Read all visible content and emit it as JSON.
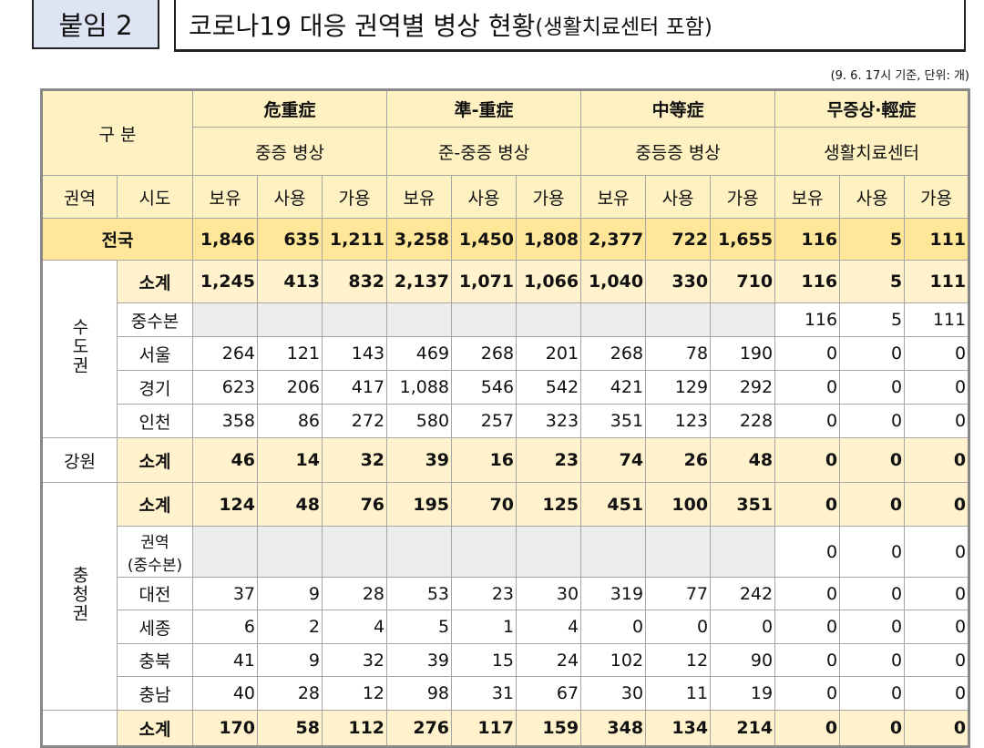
{
  "header": {
    "label": "붙임 2",
    "title": "코로나19 대응 권역별 병상 현황",
    "title_suffix": "(생활치료센터 포함)"
  },
  "note": "(9. 6. 17시 기준, 단위: 개)",
  "table": {
    "corner": "구 분",
    "groups": [
      {
        "name": "危重症",
        "sub": "중증 병상"
      },
      {
        "name": "準-重症",
        "sub": "준-중증 병상"
      },
      {
        "name": "中等症",
        "sub": "중등증 병상"
      },
      {
        "name": "무증상·輕症",
        "sub": "생활치료센터"
      }
    ],
    "col_region": "권역",
    "col_city": "시도",
    "col_sub": [
      "보유",
      "사용",
      "가용"
    ],
    "national": {
      "label": "전국",
      "values": [
        "1,846",
        "635",
        "1,211",
        "3,258",
        "1,450",
        "1,808",
        "2,377",
        "722",
        "1,655",
        "116",
        "5",
        "111"
      ]
    },
    "regions": [
      {
        "name": "수도권",
        "rows": [
          {
            "label": "소계",
            "values": [
              "1,245",
              "413",
              "832",
              "2,137",
              "1,071",
              "1,066",
              "1,040",
              "330",
              "710",
              "116",
              "5",
              "111"
            ]
          },
          {
            "label": "중수본",
            "values": [
              null,
              null,
              null,
              null,
              null,
              null,
              null,
              null,
              null,
              "116",
              "5",
              "111"
            ]
          },
          {
            "label": "서울",
            "values": [
              "264",
              "121",
              "143",
              "469",
              "268",
              "201",
              "268",
              "78",
              "190",
              "0",
              "0",
              "0"
            ]
          },
          {
            "label": "경기",
            "values": [
              "623",
              "206",
              "417",
              "1,088",
              "546",
              "542",
              "421",
              "129",
              "292",
              "0",
              "0",
              "0"
            ]
          },
          {
            "label": "인천",
            "values": [
              "358",
              "86",
              "272",
              "580",
              "257",
              "323",
              "351",
              "123",
              "228",
              "0",
              "0",
              "0"
            ]
          }
        ]
      },
      {
        "name": "강원",
        "rows": [
          {
            "label": "소계",
            "values": [
              "46",
              "14",
              "32",
              "39",
              "16",
              "23",
              "74",
              "26",
              "48",
              "0",
              "0",
              "0"
            ]
          }
        ]
      },
      {
        "name": "충청권",
        "rows": [
          {
            "label": "소계",
            "values": [
              "124",
              "48",
              "76",
              "195",
              "70",
              "125",
              "451",
              "100",
              "351",
              "0",
              "0",
              "0"
            ]
          },
          {
            "label": "권역\n(중수본)",
            "values": [
              null,
              null,
              null,
              null,
              null,
              null,
              null,
              null,
              null,
              "0",
              "0",
              "0"
            ]
          },
          {
            "label": "대전",
            "values": [
              "37",
              "9",
              "28",
              "53",
              "23",
              "30",
              "319",
              "77",
              "242",
              "0",
              "0",
              "0"
            ]
          },
          {
            "label": "세종",
            "values": [
              "6",
              "2",
              "4",
              "5",
              "1",
              "4",
              "0",
              "0",
              "0",
              "0",
              "0",
              "0"
            ]
          },
          {
            "label": "충북",
            "values": [
              "41",
              "9",
              "32",
              "39",
              "15",
              "24",
              "102",
              "12",
              "90",
              "0",
              "0",
              "0"
            ]
          },
          {
            "label": "충남",
            "values": [
              "40",
              "28",
              "12",
              "98",
              "31",
              "67",
              "30",
              "11",
              "19",
              "0",
              "0",
              "0"
            ]
          }
        ]
      },
      {
        "name": null,
        "rows": [
          {
            "label": "소계",
            "values": [
              "170",
              "58",
              "112",
              "276",
              "117",
              "159",
              "348",
              "134",
              "214",
              "0",
              "0",
              "0"
            ]
          }
        ]
      }
    ]
  }
}
